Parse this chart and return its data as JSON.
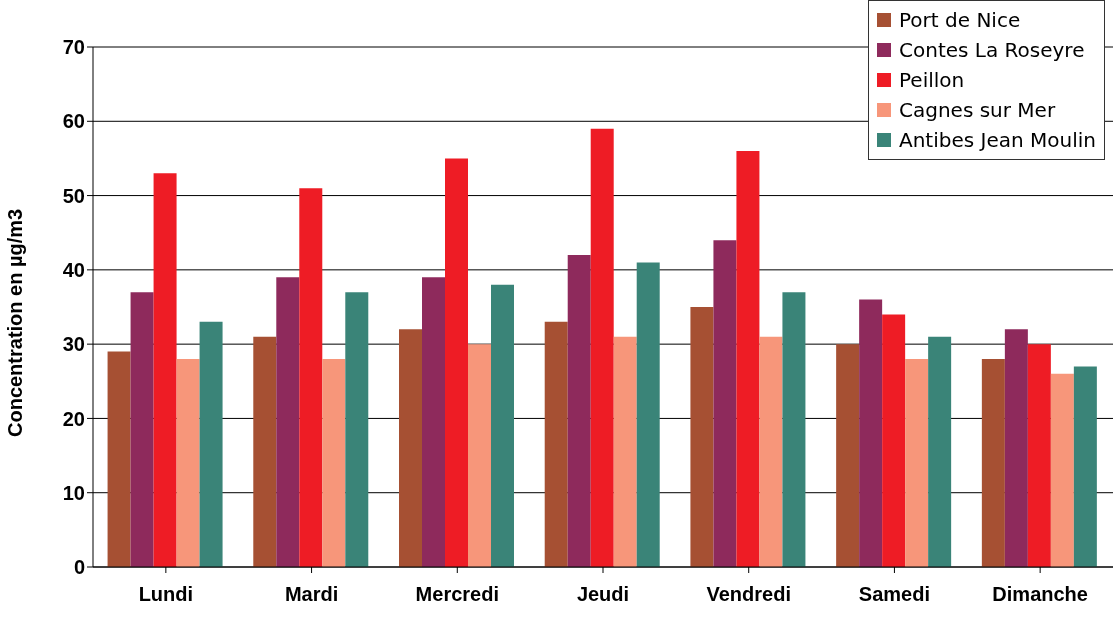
{
  "chart_data": {
    "type": "bar",
    "ylabel": "Concentration en µg/m3",
    "categories": [
      "Lundi",
      "Mardi",
      "Mercredi",
      "Jeudi",
      "Vendredi",
      "Samedi",
      "Dimanche"
    ],
    "series": [
      {
        "name": "Port de Nice",
        "color": "#a65033",
        "values": [
          29,
          31,
          32,
          33,
          35,
          30,
          28
        ]
      },
      {
        "name": "Contes La Roseyre",
        "color": "#8e2a5c",
        "values": [
          37,
          39,
          39,
          42,
          44,
          36,
          32
        ]
      },
      {
        "name": "Peillon",
        "color": "#ee1c25",
        "values": [
          53,
          51,
          55,
          59,
          56,
          34,
          30
        ]
      },
      {
        "name": "Cagnes sur Mer",
        "color": "#f7967a",
        "values": [
          28,
          28,
          30,
          31,
          31,
          28,
          26
        ]
      },
      {
        "name": "Antibes Jean Moulin",
        "color": "#3a8478",
        "values": [
          33,
          37,
          38,
          41,
          37,
          31,
          27
        ]
      }
    ],
    "ylim": [
      0,
      70
    ],
    "yticks": [
      0,
      10,
      20,
      30,
      40,
      50,
      60,
      70
    ],
    "grid": "y",
    "legend": "top right"
  }
}
